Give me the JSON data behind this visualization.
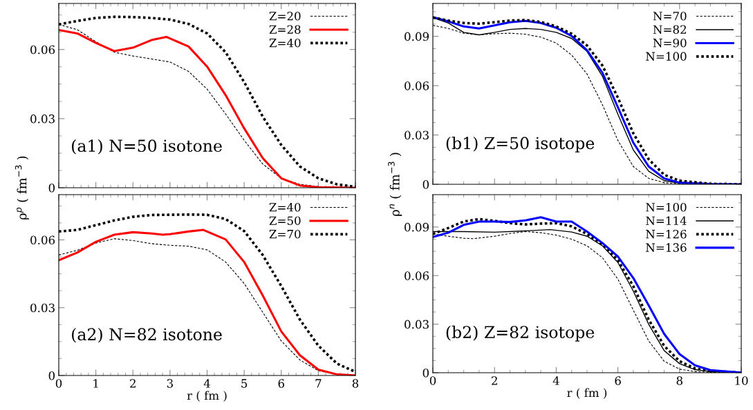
{
  "chart_data": [
    {
      "type": "line",
      "ylabel": "ρ$^{p}$ ( fm$^{−3}$ )",
      "annotations": [
        "(a1) N=50 isotone"
      ],
      "xlim": [
        0,
        8
      ],
      "xticks": [
        0,
        1,
        2,
        3,
        4,
        5,
        6,
        7,
        8
      ],
      "ylim": [
        0,
        0.08
      ],
      "yticks": [
        0,
        0.03,
        0.06
      ],
      "tick_labels": "y",
      "legend": "top right",
      "grid": false,
      "x": [
        0,
        0.5,
        1,
        1.5,
        2,
        2.5,
        3,
        3.5,
        4,
        4.5,
        5,
        5.5,
        6,
        6.5,
        7,
        7.5,
        8
      ],
      "series": [
        {
          "name": "Z=20",
          "color": "#000000",
          "line_style": "dashed",
          "x": [
            0,
            0.5,
            1,
            1.5,
            2,
            3,
            3.5,
            4,
            4.5,
            5,
            5.5,
            6,
            6.5,
            7,
            8
          ],
          "values": [
            0.0709,
            0.0686,
            0.0634,
            0.0588,
            0.0572,
            0.0546,
            0.0505,
            0.0428,
            0.032,
            0.0206,
            0.0103,
            0.0041,
            0.0015,
            0.0005,
            0
          ]
        },
        {
          "name": "Z=28",
          "color": "#ff0000",
          "line_style": "solid",
          "x": [
            0,
            0.5,
            1,
            1.5,
            2,
            2.5,
            2.9,
            3.5,
            4,
            4.5,
            5,
            5.5,
            6,
            6.5,
            7,
            8
          ],
          "values": [
            0.0685,
            0.067,
            0.0629,
            0.0593,
            0.0608,
            0.0641,
            0.0655,
            0.0613,
            0.0526,
            0.0402,
            0.0258,
            0.0129,
            0.0041,
            0.001,
            0.0002,
            0
          ]
        },
        {
          "name": "Z=40",
          "color": "#000000",
          "line_style": "dotted",
          "values": [
            0.0709,
            0.0724,
            0.0737,
            0.0742,
            0.0741,
            0.0737,
            0.073,
            0.0711,
            0.067,
            0.0588,
            0.0459,
            0.0309,
            0.0186,
            0.0093,
            0.0041,
            0.0015,
            0.0004
          ]
        }
      ]
    },
    {
      "type": "line",
      "xlabel": "r ( fm )",
      "annotations": [
        "(a2) N=82 isotone"
      ],
      "xlim": [
        0,
        8
      ],
      "xticks": [
        0,
        1,
        2,
        3,
        4,
        5,
        6,
        7,
        8
      ],
      "ylim": [
        0,
        0.08
      ],
      "yticks": [
        0,
        0.03,
        0.06
      ],
      "legend": "top right",
      "grid": false,
      "x": [
        0,
        0.5,
        1,
        1.5,
        2,
        2.5,
        3,
        3.5,
        4,
        4.5,
        5,
        5.5,
        6,
        6.5,
        7,
        7.5,
        8
      ],
      "series": [
        {
          "name": "Z=40",
          "color": "#000000",
          "line_style": "dashed",
          "values": [
            0.0533,
            0.0554,
            0.0586,
            0.0605,
            0.0597,
            0.0583,
            0.0576,
            0.0572,
            0.0556,
            0.0502,
            0.0407,
            0.028,
            0.0153,
            0.0069,
            0.0021,
            0.0005,
            0
          ]
        },
        {
          "name": "Z=50",
          "color": "#ff0000",
          "line_style": "solid",
          "x": [
            0,
            0.5,
            1,
            1.5,
            2,
            2.5,
            2.8,
            3,
            3.5,
            3.9,
            4.5,
            5,
            5.5,
            6,
            6.5,
            7,
            7.5,
            8
          ],
          "values": [
            0.051,
            0.0544,
            0.0591,
            0.0623,
            0.0634,
            0.0628,
            0.0623,
            0.0625,
            0.0637,
            0.0644,
            0.0602,
            0.0502,
            0.0354,
            0.0195,
            0.009,
            0.0026,
            0.0005,
            0
          ]
        },
        {
          "name": "Z=70",
          "color": "#000000",
          "line_style": "dotted",
          "values": [
            0.0637,
            0.0644,
            0.0665,
            0.0686,
            0.0702,
            0.071,
            0.0711,
            0.0712,
            0.0711,
            0.0692,
            0.0639,
            0.0533,
            0.0396,
            0.0248,
            0.0132,
            0.0053,
            0.0016
          ]
        }
      ]
    },
    {
      "type": "line",
      "ylabel": "ρ$^{n}$ ( fm$^{−3}$ )",
      "annotations": [
        "(b1) Z=50 isotope"
      ],
      "xlim": [
        0,
        10
      ],
      "xticks": [
        0,
        2,
        4,
        6,
        8,
        10
      ],
      "ylim": [
        0,
        0.11
      ],
      "yticks": [
        0,
        0.03,
        0.06,
        0.09
      ],
      "tick_labels": "y",
      "legend": "top right",
      "grid": false,
      "x": [
        0,
        0.5,
        1,
        1.5,
        2,
        2.5,
        3,
        3.5,
        4,
        4.5,
        5,
        5.5,
        6,
        6.5,
        7,
        7.5,
        8,
        9,
        10
      ],
      "series": [
        {
          "name": "N=70",
          "color": "#000000",
          "line_style": "dashed",
          "values": [
            0.0967,
            0.0948,
            0.0919,
            0.0909,
            0.0916,
            0.0919,
            0.0913,
            0.0895,
            0.0859,
            0.0786,
            0.0671,
            0.0483,
            0.0267,
            0.0108,
            0.0036,
            0.001,
            0.0003,
            0,
            0
          ]
        },
        {
          "name": "N=82",
          "color": "#000000",
          "line_style": "solid",
          "values": [
            0.1014,
            0.0981,
            0.0924,
            0.0909,
            0.0924,
            0.0942,
            0.0948,
            0.0942,
            0.0924,
            0.0887,
            0.0808,
            0.0657,
            0.0426,
            0.0209,
            0.0079,
            0.0022,
            0.0007,
            0.0001,
            0
          ]
        },
        {
          "name": "N=90",
          "color": "#0000ff",
          "line_style": "solid",
          "values": [
            0.1017,
            0.0991,
            0.096,
            0.0948,
            0.0967,
            0.0986,
            0.0994,
            0.0981,
            0.0952,
            0.0902,
            0.0815,
            0.0678,
            0.0469,
            0.0253,
            0.0108,
            0.0036,
            0.001,
            0.0002,
            0
          ]
        },
        {
          "name": "N=100",
          "color": "#000000",
          "line_style": "dotted",
          "values": [
            0.1014,
            0.0996,
            0.0981,
            0.0977,
            0.0986,
            0.0996,
            0.0999,
            0.0988,
            0.096,
            0.0916,
            0.0844,
            0.0722,
            0.0527,
            0.031,
            0.0152,
            0.0058,
            0.0022,
            0.0003,
            0
          ]
        }
      ]
    },
    {
      "type": "line",
      "xlabel": "r ( fm )",
      "annotations": [
        "(b2) Z=82 isotope"
      ],
      "xlim": [
        0,
        10
      ],
      "xticks": [
        0,
        2,
        4,
        6,
        8,
        10
      ],
      "ylim": [
        0,
        0.11
      ],
      "yticks": [
        0,
        0.03,
        0.06,
        0.09
      ],
      "legend": "top right",
      "grid": false,
      "x": [
        0,
        0.5,
        1,
        1.5,
        2,
        2.5,
        3,
        3.5,
        4,
        4.5,
        5,
        5.5,
        6,
        6.5,
        7,
        7.5,
        8,
        8.5,
        9,
        10
      ],
      "series": [
        {
          "name": "N=100",
          "color": "#000000",
          "line_style": "dashed",
          "x": [
            0,
            0.5,
            1,
            1.3,
            2,
            2.5,
            3,
            3.5,
            4,
            4.5,
            5,
            5.5,
            6,
            6.5,
            7,
            7.5,
            8,
            8.5,
            9,
            10
          ],
          "values": [
            0.0857,
            0.0843,
            0.0831,
            0.0828,
            0.0843,
            0.086,
            0.0872,
            0.0865,
            0.085,
            0.0825,
            0.0784,
            0.071,
            0.0578,
            0.0387,
            0.0196,
            0.0071,
            0.0022,
            0.0007,
            0.0002,
            0
          ]
        },
        {
          "name": "N=114",
          "color": "#000000",
          "line_style": "solid",
          "x": [
            0,
            1,
            2,
            3,
            3.8,
            4.5,
            5,
            5.5,
            6,
            6.5,
            7,
            7.5,
            8,
            8.5,
            9,
            10
          ],
          "values": [
            0.0872,
            0.0872,
            0.0868,
            0.0876,
            0.0884,
            0.0869,
            0.0843,
            0.0784,
            0.0681,
            0.0504,
            0.0299,
            0.0137,
            0.0056,
            0.0019,
            0.0007,
            0.0001
          ]
        },
        {
          "name": "N=126",
          "color": "#000000",
          "line_style": "dotted",
          "values": [
            0.0857,
            0.0894,
            0.0934,
            0.0949,
            0.0938,
            0.0924,
            0.0916,
            0.0921,
            0.0924,
            0.0904,
            0.0857,
            0.0791,
            0.0696,
            0.0534,
            0.0328,
            0.0166,
            0.0071,
            0.0026,
            0.001,
            0.0001
          ]
        },
        {
          "name": "N=136",
          "color": "#0000ff",
          "line_style": "solid",
          "values": [
            0.0838,
            0.0865,
            0.0913,
            0.0934,
            0.0934,
            0.0931,
            0.0941,
            0.096,
            0.0934,
            0.0934,
            0.0872,
            0.0801,
            0.0718,
            0.0585,
            0.0416,
            0.024,
            0.0115,
            0.0046,
            0.0016,
            0.0001
          ]
        }
      ]
    }
  ]
}
